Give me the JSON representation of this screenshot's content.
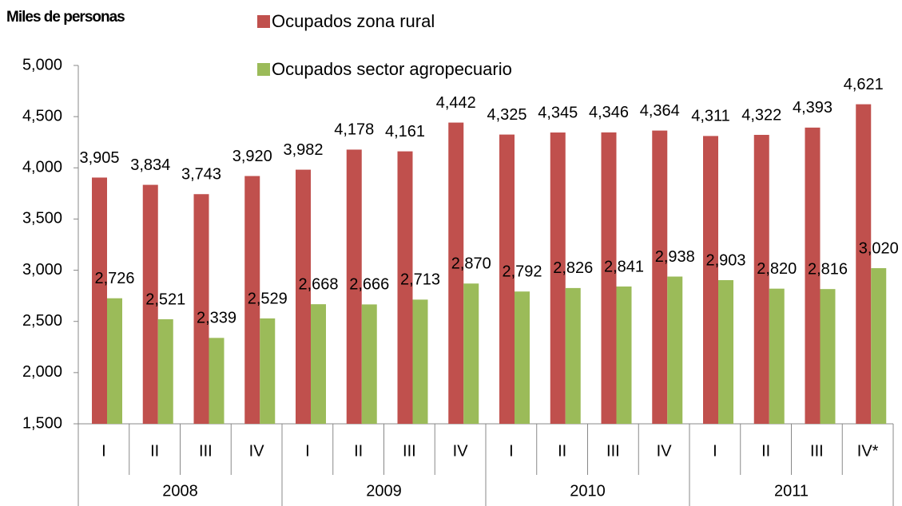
{
  "chart_data": {
    "type": "bar",
    "y_axis_title": "Miles de personas",
    "categories": [
      "I",
      "II",
      "III",
      "IV",
      "I",
      "II",
      "III",
      "IV",
      "I",
      "II",
      "III",
      "IV",
      "I",
      "II",
      "III",
      "IV*"
    ],
    "years": [
      "2008",
      "2009",
      "2010",
      "2011"
    ],
    "series": [
      {
        "name": "Ocupados zona rural",
        "color": "#c0504d",
        "values": [
          3905,
          3834,
          3743,
          3920,
          3982,
          4178,
          4161,
          4442,
          4325,
          4345,
          4346,
          4364,
          4311,
          4322,
          4393,
          4621
        ],
        "value_labels": [
          "3,905",
          "3,834",
          "3,743",
          "3,920",
          "3,982",
          "4,178",
          "4,161",
          "4,442",
          "4,325",
          "4,345",
          "4,346",
          "4,364",
          "4,311",
          "4,322",
          "4,393",
          "4,621"
        ]
      },
      {
        "name": "Ocupados sector agropecuario",
        "color": "#9bbb59",
        "values": [
          2726,
          2521,
          2339,
          2529,
          2668,
          2666,
          2713,
          2870,
          2792,
          2826,
          2841,
          2938,
          2903,
          2820,
          2816,
          3020
        ],
        "value_labels": [
          "2,726",
          "2,521",
          "2,339",
          "2,529",
          "2,668",
          "2,666",
          "2,713",
          "2,870",
          "2,792",
          "2,826",
          "2,841",
          "2,938",
          "2,903",
          "2,820",
          "2,816",
          "3,020"
        ]
      }
    ],
    "ylim": [
      1500,
      5000
    ],
    "yticks": [
      {
        "value": 1500,
        "label": "1,500"
      },
      {
        "value": 2000,
        "label": "2,000"
      },
      {
        "value": 2500,
        "label": "2,500"
      },
      {
        "value": 3000,
        "label": "3,000"
      },
      {
        "value": 3500,
        "label": "3,500"
      },
      {
        "value": 4000,
        "label": "4,000"
      },
      {
        "value": 4500,
        "label": "4,500"
      },
      {
        "value": 5000,
        "label": "5,000"
      }
    ]
  }
}
